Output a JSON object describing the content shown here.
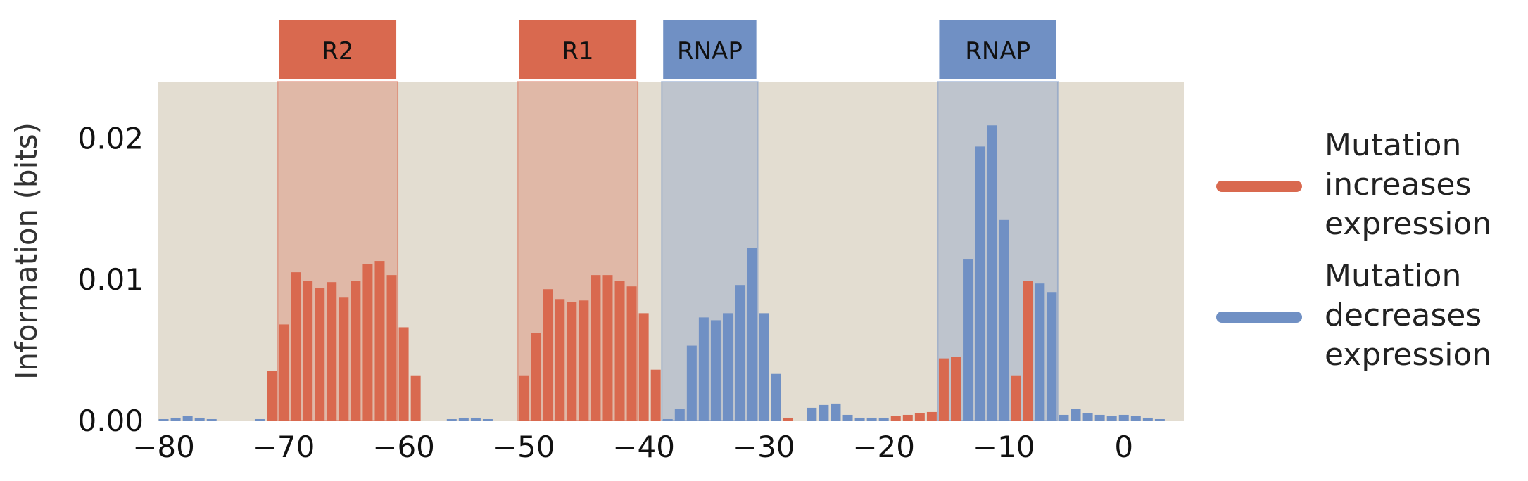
{
  "chart_data": {
    "type": "bar",
    "title": "",
    "ylabel": "Information (bits)",
    "xlabel": "",
    "xlim": [
      -80.5,
      5
    ],
    "ylim": [
      0,
      0.024
    ],
    "xticks": [
      -80,
      -70,
      -60,
      -50,
      -40,
      -30,
      -20,
      -10,
      0
    ],
    "xtick_labels": [
      "−80",
      "−70",
      "−60",
      "−50",
      "−40",
      "−30",
      "−20",
      "−10",
      "0"
    ],
    "yticks": [
      0,
      0.01,
      0.02
    ],
    "ytick_labels": [
      "0.00",
      "0.01",
      "0.02"
    ],
    "grid": false,
    "background": "#e3ddd1",
    "colors": {
      "increases": "#d9694f",
      "decreases": "#7090c4"
    },
    "regions": [
      {
        "label": "R2",
        "start": -70.5,
        "end": -60.5,
        "effect": "increases"
      },
      {
        "label": "R1",
        "start": -50.5,
        "end": -40.5,
        "effect": "increases"
      },
      {
        "label": "RNAP",
        "start": -38.5,
        "end": -30.5,
        "effect": "decreases"
      },
      {
        "label": "RNAP",
        "start": -15.5,
        "end": -5.5,
        "effect": "decreases"
      }
    ],
    "legend": {
      "placement": "right",
      "entries": [
        {
          "lines": [
            "Mutation",
            "increases",
            "expression"
          ],
          "effect": "increases"
        },
        {
          "lines": [
            "Mutation",
            "decreases",
            "expression"
          ],
          "effect": "decreases"
        }
      ]
    },
    "x": [
      -81,
      -80,
      -79,
      -78,
      -77,
      -76,
      -75,
      -74,
      -73,
      -72,
      -71,
      -70,
      -69,
      -68,
      -67,
      -66,
      -65,
      -64,
      -63,
      -62,
      -61,
      -60,
      -59,
      -58,
      -57,
      -56,
      -55,
      -54,
      -53,
      -52,
      -51,
      -50,
      -49,
      -48,
      -47,
      -46,
      -45,
      -44,
      -43,
      -42,
      -41,
      -40,
      -39,
      -38,
      -37,
      -36,
      -35,
      -34,
      -33,
      -32,
      -31,
      -30,
      -29,
      -28,
      -27,
      -26,
      -25,
      -24,
      -23,
      -22,
      -21,
      -20,
      -19,
      -18,
      -17,
      -16,
      -15,
      -14,
      -13,
      -12,
      -11,
      -10,
      -9,
      -8,
      -7,
      -6,
      -5,
      -4,
      -3,
      -2,
      -1,
      0,
      1,
      2,
      3
    ],
    "values": [
      0,
      0.0001,
      0.0002,
      0.0003,
      0.0002,
      0.0001,
      0,
      0,
      0,
      0.0001,
      0.0035,
      0.0068,
      0.0105,
      0.0099,
      0.0094,
      0.0098,
      0.0087,
      0.0099,
      0.0111,
      0.0113,
      0.0103,
      0.0066,
      0.0032,
      0,
      0,
      0.0001,
      0.0002,
      0.0002,
      0.0001,
      0,
      0,
      0.0032,
      0.0062,
      0.0093,
      0.0086,
      0.0084,
      0.0085,
      0.0103,
      0.0103,
      0.0099,
      0.0095,
      0.0076,
      0.0036,
      0.0001,
      0.0008,
      0.0053,
      0.0073,
      0.0071,
      0.0076,
      0.0096,
      0.0122,
      0.0076,
      0.0033,
      0.0002,
      0,
      0.0009,
      0.0011,
      0.0012,
      0.0004,
      0.0002,
      0.0002,
      0.0002,
      0.0003,
      0.0004,
      0.0005,
      0.0006,
      0.0044,
      0.0045,
      0.0114,
      0.0194,
      0.0209,
      0.0142,
      0.0032,
      0.0099,
      0.0097,
      0.0091,
      0.0004,
      0.0008,
      0.0005,
      0.0004,
      0.0003,
      0.0004,
      0.0003,
      0.0002,
      0.0001
    ],
    "effects": [
      "decreases",
      "decreases",
      "decreases",
      "decreases",
      "decreases",
      "decreases",
      "decreases",
      "decreases",
      "decreases",
      "decreases",
      "increases",
      "increases",
      "increases",
      "increases",
      "increases",
      "increases",
      "increases",
      "increases",
      "increases",
      "increases",
      "increases",
      "increases",
      "increases",
      "decreases",
      "decreases",
      "decreases",
      "decreases",
      "decreases",
      "decreases",
      "decreases",
      "increases",
      "increases",
      "increases",
      "increases",
      "increases",
      "increases",
      "increases",
      "increases",
      "increases",
      "increases",
      "increases",
      "increases",
      "increases",
      "decreases",
      "decreases",
      "decreases",
      "decreases",
      "decreases",
      "decreases",
      "decreases",
      "decreases",
      "decreases",
      "decreases",
      "increases",
      "decreases",
      "decreases",
      "decreases",
      "decreases",
      "decreases",
      "decreases",
      "decreases",
      "decreases",
      "increases",
      "increases",
      "increases",
      "increases",
      "increases",
      "increases",
      "decreases",
      "decreases",
      "decreases",
      "decreases",
      "increases",
      "increases",
      "decreases",
      "decreases",
      "decreases",
      "decreases",
      "decreases",
      "decreases",
      "decreases",
      "decreases",
      "decreases",
      "decreases",
      "decreases"
    ]
  }
}
